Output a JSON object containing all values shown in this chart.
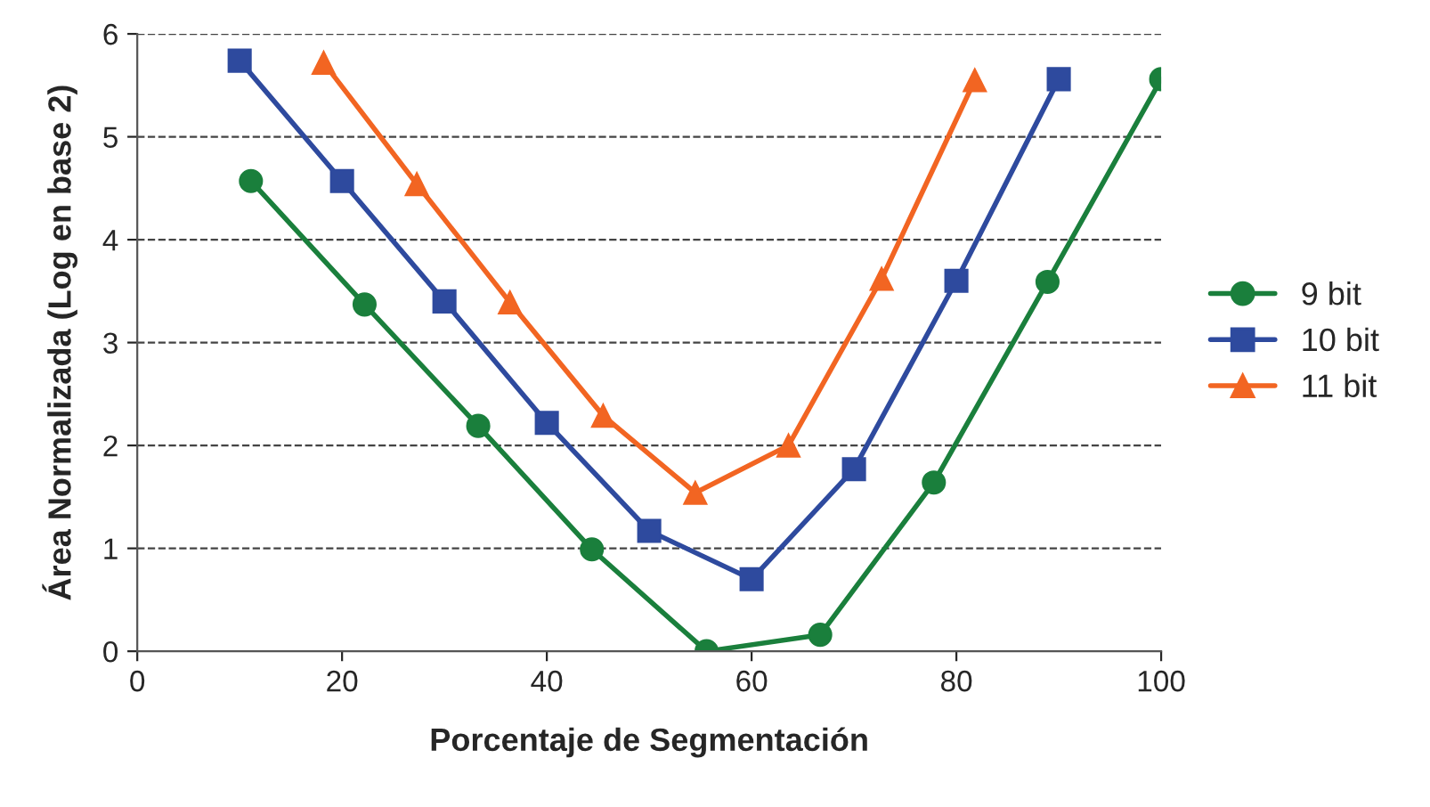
{
  "chart_data": {
    "type": "line",
    "xlabel": "Porcentaje de Segmentación",
    "ylabel": "Área Normalizada (Log en base 2)",
    "xlim": [
      0,
      100
    ],
    "xticks": [
      0,
      20,
      40,
      60,
      80,
      100
    ],
    "ylim": [
      0,
      6
    ],
    "yticks": [
      0,
      1,
      2,
      3,
      4,
      5,
      6
    ],
    "grid": "y",
    "legend": "right",
    "line_style": "solid",
    "series": [
      {
        "name": "9 bit",
        "color": "#1a7f3c",
        "marker": "circle",
        "x": [
          11.1,
          22.2,
          33.3,
          44.4,
          55.6,
          66.7,
          77.8,
          88.9,
          100
        ],
        "values": [
          4.57,
          3.37,
          2.19,
          0.99,
          0,
          0.16,
          1.64,
          3.59,
          5.56
        ]
      },
      {
        "name": "10 bit",
        "color": "#2e4a9e",
        "marker": "square",
        "x": [
          10,
          20,
          30,
          40,
          50,
          60,
          70,
          80,
          90
        ],
        "values": [
          5.74,
          4.57,
          3.4,
          2.22,
          1.17,
          0.7,
          1.77,
          3.6,
          5.56
        ]
      },
      {
        "name": "11 bit",
        "color": "#f26522",
        "marker": "triangle",
        "x": [
          18.2,
          27.3,
          36.4,
          45.5,
          54.5,
          63.6,
          72.7,
          81.8
        ],
        "values": [
          5.72,
          4.54,
          3.39,
          2.29,
          1.54,
          2.0,
          3.62,
          5.55
        ]
      }
    ]
  }
}
